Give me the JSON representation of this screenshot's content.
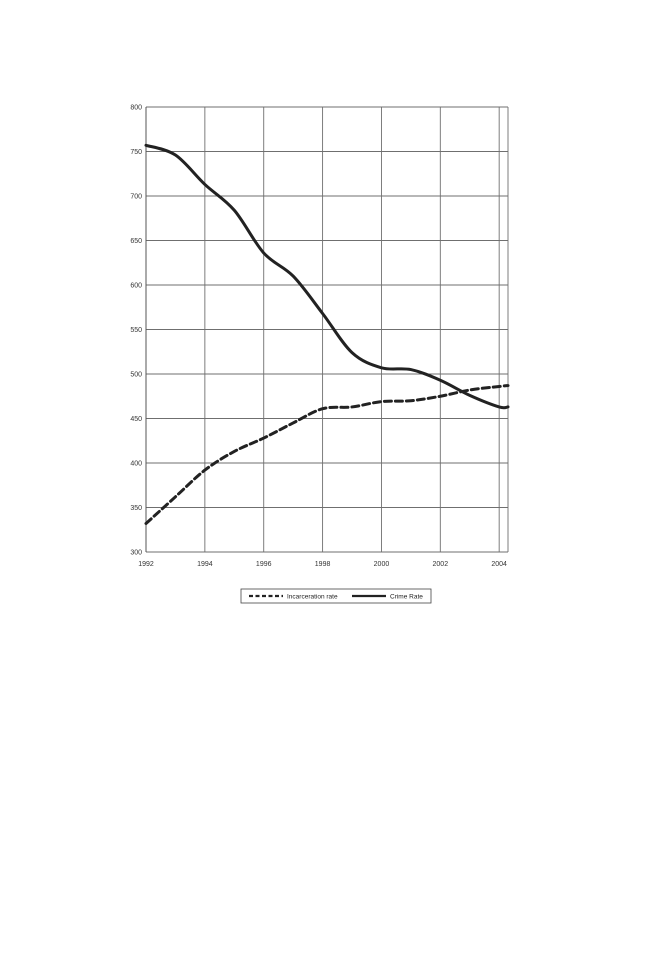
{
  "chart_data": {
    "type": "line",
    "title": "",
    "xlabel": "",
    "ylabel": "",
    "x_ticks": [
      "1992",
      "1994",
      "1996",
      "1998",
      "2000",
      "2002",
      "2004"
    ],
    "y_ticks": [
      "300",
      "350",
      "400",
      "450",
      "500",
      "550",
      "600",
      "650",
      "700",
      "750",
      "800"
    ],
    "xlim": [
      1992,
      2004.3
    ],
    "ylim": [
      300,
      800
    ],
    "grid": true,
    "legend_position": "bottom",
    "series": [
      {
        "name": "Incarceration rate",
        "style": "dashed",
        "color": "#222222",
        "x": [
          1992,
          1993,
          1994,
          1995,
          1996,
          1997,
          1998,
          1999,
          2000,
          2001,
          2002,
          2003,
          2004,
          2004.3
        ],
        "values": [
          332,
          362,
          392,
          413,
          428,
          445,
          461,
          463,
          469,
          470,
          475,
          482,
          486,
          487
        ]
      },
      {
        "name": "Crime Rate",
        "style": "solid",
        "color": "#222222",
        "x": [
          1992,
          1993,
          1994,
          1995,
          1996,
          1997,
          1998,
          1999,
          2000,
          2001,
          2002,
          2003,
          2004,
          2004.3
        ],
        "values": [
          757,
          746,
          713,
          684,
          636,
          610,
          568,
          524,
          507,
          505,
          493,
          476,
          463,
          463
        ]
      }
    ]
  }
}
